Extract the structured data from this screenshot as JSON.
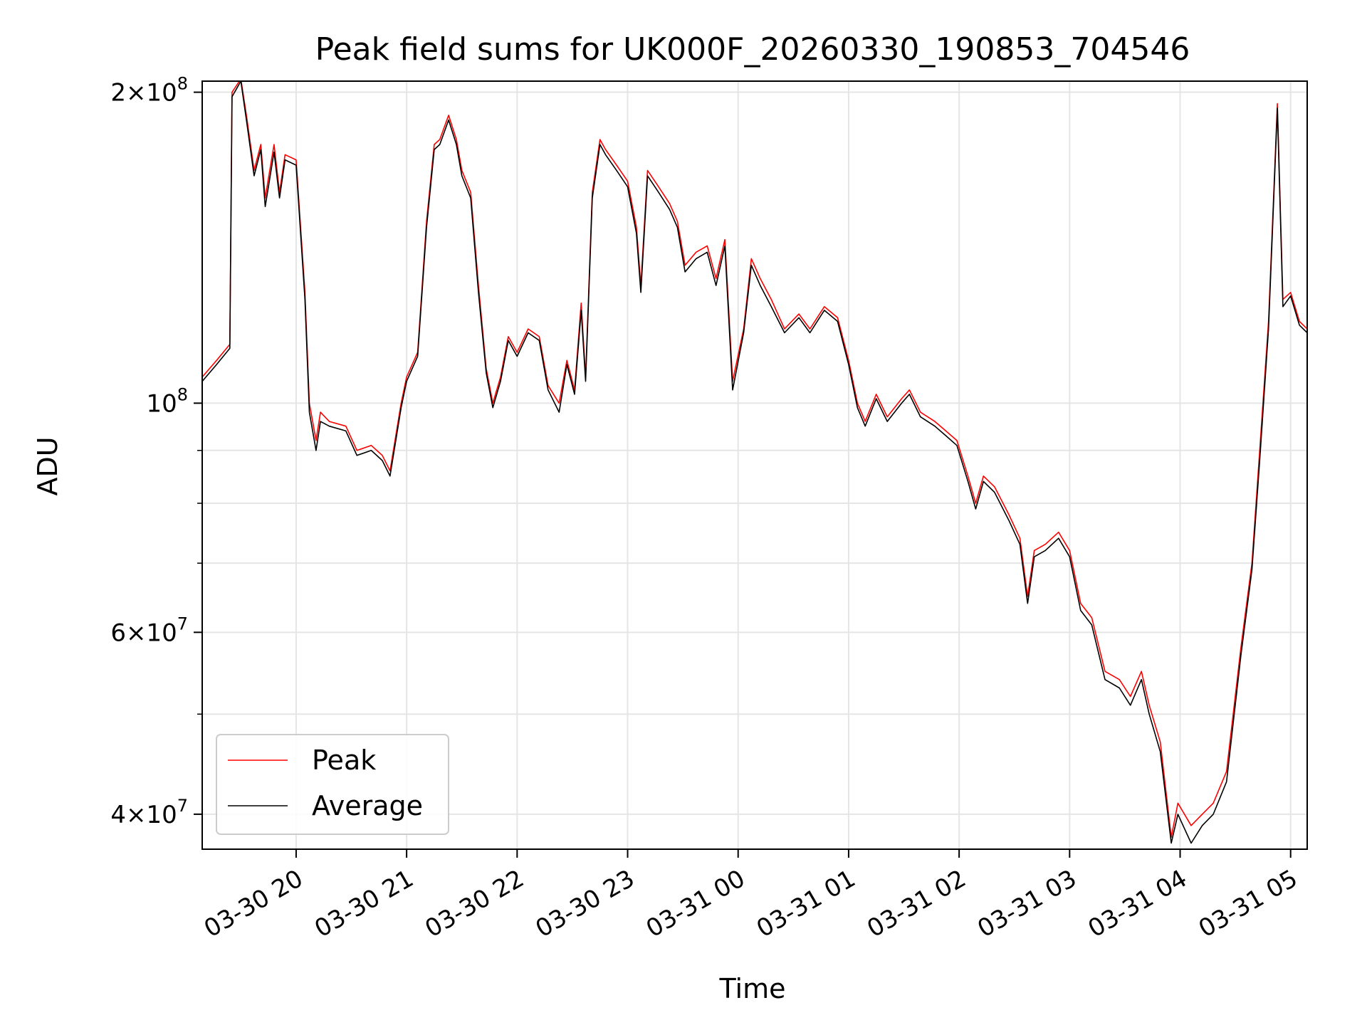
{
  "chart_data": {
    "type": "line",
    "title": "Peak field sums for UK000F_20260330_190853_704546",
    "xlabel": "Time",
    "ylabel": "ADU",
    "y_scale": "log",
    "ylim": [
      37000000,
      205000000
    ],
    "xlim_hours": [
      19.15,
      29.15
    ],
    "grid": true,
    "legend_position": "lower-left",
    "x_ticks": [
      {
        "hour": 20,
        "label": "03-30 20"
      },
      {
        "hour": 21,
        "label": "03-30 21"
      },
      {
        "hour": 22,
        "label": "03-30 22"
      },
      {
        "hour": 23,
        "label": "03-30 23"
      },
      {
        "hour": 24,
        "label": "03-31 00"
      },
      {
        "hour": 25,
        "label": "03-31 01"
      },
      {
        "hour": 26,
        "label": "03-31 02"
      },
      {
        "hour": 27,
        "label": "03-31 03"
      },
      {
        "hour": 28,
        "label": "03-31 04"
      },
      {
        "hour": 29,
        "label": "03-31 05"
      }
    ],
    "y_ticks": [
      {
        "value": 200000000,
        "mantissa": "2",
        "exp": "8"
      },
      {
        "value": 100000000,
        "mantissa": "",
        "exp": "8"
      },
      {
        "value": 60000000,
        "mantissa": "6",
        "exp": "7"
      },
      {
        "value": 40000000,
        "mantissa": "4",
        "exp": "7"
      }
    ],
    "y_minor_ticks": [
      50000000,
      70000000,
      80000000,
      90000000
    ],
    "series": [
      {
        "name": "Peak",
        "color": "#ff0000",
        "points": [
          [
            19.15,
            106000000
          ],
          [
            19.28,
            110000000
          ],
          [
            19.4,
            114000000
          ],
          [
            19.42,
            200000000
          ],
          [
            19.5,
            206000000
          ],
          [
            19.55,
            190000000
          ],
          [
            19.62,
            168000000
          ],
          [
            19.68,
            178000000
          ],
          [
            19.72,
            158000000
          ],
          [
            19.8,
            178000000
          ],
          [
            19.85,
            160000000
          ],
          [
            19.9,
            174000000
          ],
          [
            20.0,
            172000000
          ],
          [
            20.08,
            128000000
          ],
          [
            20.12,
            100000000
          ],
          [
            20.18,
            92000000
          ],
          [
            20.22,
            98000000
          ],
          [
            20.3,
            96000000
          ],
          [
            20.45,
            95000000
          ],
          [
            20.55,
            90000000
          ],
          [
            20.68,
            91000000
          ],
          [
            20.78,
            89000000
          ],
          [
            20.85,
            86000000
          ],
          [
            20.95,
            100000000
          ],
          [
            21.0,
            106000000
          ],
          [
            21.1,
            112000000
          ],
          [
            21.18,
            150000000
          ],
          [
            21.25,
            178000000
          ],
          [
            21.3,
            180000000
          ],
          [
            21.38,
            190000000
          ],
          [
            21.45,
            180000000
          ],
          [
            21.5,
            168000000
          ],
          [
            21.58,
            160000000
          ],
          [
            21.65,
            130000000
          ],
          [
            21.72,
            108000000
          ],
          [
            21.78,
            100000000
          ],
          [
            21.85,
            106000000
          ],
          [
            21.92,
            116000000
          ],
          [
            22.0,
            112000000
          ],
          [
            22.1,
            118000000
          ],
          [
            22.2,
            116000000
          ],
          [
            22.28,
            104000000
          ],
          [
            22.38,
            100000000
          ],
          [
            22.45,
            110000000
          ],
          [
            22.52,
            103000000
          ],
          [
            22.58,
            125000000
          ],
          [
            22.62,
            106000000
          ],
          [
            22.68,
            160000000
          ],
          [
            22.75,
            180000000
          ],
          [
            22.8,
            176000000
          ],
          [
            22.9,
            170000000
          ],
          [
            23.0,
            164000000
          ],
          [
            23.08,
            148000000
          ],
          [
            23.12,
            130000000
          ],
          [
            23.18,
            168000000
          ],
          [
            23.28,
            162000000
          ],
          [
            23.38,
            156000000
          ],
          [
            23.45,
            150000000
          ],
          [
            23.52,
            136000000
          ],
          [
            23.62,
            140000000
          ],
          [
            23.72,
            142000000
          ],
          [
            23.8,
            132000000
          ],
          [
            23.88,
            144000000
          ],
          [
            23.95,
            105000000
          ],
          [
            24.05,
            118000000
          ],
          [
            24.12,
            138000000
          ],
          [
            24.2,
            132000000
          ],
          [
            24.3,
            126000000
          ],
          [
            24.42,
            118000000
          ],
          [
            24.55,
            122000000
          ],
          [
            24.65,
            118000000
          ],
          [
            24.78,
            124000000
          ],
          [
            24.9,
            121000000
          ],
          [
            25.0,
            110000000
          ],
          [
            25.08,
            100000000
          ],
          [
            25.15,
            96000000
          ],
          [
            25.25,
            102000000
          ],
          [
            25.35,
            97000000
          ],
          [
            25.48,
            101000000
          ],
          [
            25.55,
            103000000
          ],
          [
            25.65,
            98000000
          ],
          [
            25.78,
            96000000
          ],
          [
            25.88,
            94000000
          ],
          [
            25.98,
            92000000
          ],
          [
            26.08,
            85000000
          ],
          [
            26.15,
            80000000
          ],
          [
            26.22,
            85000000
          ],
          [
            26.32,
            83000000
          ],
          [
            26.45,
            78000000
          ],
          [
            26.55,
            74000000
          ],
          [
            26.62,
            65000000
          ],
          [
            26.68,
            72000000
          ],
          [
            26.78,
            73000000
          ],
          [
            26.9,
            75000000
          ],
          [
            27.0,
            72000000
          ],
          [
            27.1,
            64000000
          ],
          [
            27.2,
            62000000
          ],
          [
            27.32,
            55000000
          ],
          [
            27.45,
            54000000
          ],
          [
            27.55,
            52000000
          ],
          [
            27.65,
            55000000
          ],
          [
            27.72,
            51000000
          ],
          [
            27.82,
            47000000
          ],
          [
            27.92,
            38000000
          ],
          [
            27.98,
            41000000
          ],
          [
            28.1,
            39000000
          ],
          [
            28.2,
            40000000
          ],
          [
            28.3,
            41000000
          ],
          [
            28.42,
            44000000
          ],
          [
            28.55,
            58000000
          ],
          [
            28.65,
            70000000
          ],
          [
            28.72,
            90000000
          ],
          [
            28.8,
            120000000
          ],
          [
            28.88,
            195000000
          ],
          [
            28.93,
            126000000
          ],
          [
            29.0,
            128000000
          ],
          [
            29.08,
            120000000
          ],
          [
            29.15,
            118000000
          ]
        ]
      },
      {
        "name": "Average",
        "color": "#000000",
        "points": [
          [
            19.15,
            105000000
          ],
          [
            19.28,
            109000000
          ],
          [
            19.4,
            113000000
          ],
          [
            19.42,
            198000000
          ],
          [
            19.5,
            205000000
          ],
          [
            19.55,
            188000000
          ],
          [
            19.62,
            166000000
          ],
          [
            19.68,
            176000000
          ],
          [
            19.72,
            155000000
          ],
          [
            19.8,
            175000000
          ],
          [
            19.85,
            158000000
          ],
          [
            19.9,
            172000000
          ],
          [
            20.0,
            170000000
          ],
          [
            20.08,
            126000000
          ],
          [
            20.12,
            98000000
          ],
          [
            20.18,
            90000000
          ],
          [
            20.22,
            96000000
          ],
          [
            20.3,
            95000000
          ],
          [
            20.45,
            94000000
          ],
          [
            20.55,
            89000000
          ],
          [
            20.68,
            90000000
          ],
          [
            20.78,
            88000000
          ],
          [
            20.85,
            85000000
          ],
          [
            20.95,
            99000000
          ],
          [
            21.0,
            105000000
          ],
          [
            21.1,
            111000000
          ],
          [
            21.18,
            148000000
          ],
          [
            21.25,
            176000000
          ],
          [
            21.3,
            178000000
          ],
          [
            21.38,
            188000000
          ],
          [
            21.45,
            178000000
          ],
          [
            21.5,
            166000000
          ],
          [
            21.58,
            158000000
          ],
          [
            21.65,
            128000000
          ],
          [
            21.72,
            107000000
          ],
          [
            21.78,
            99000000
          ],
          [
            21.85,
            105000000
          ],
          [
            21.92,
            115000000
          ],
          [
            22.0,
            111000000
          ],
          [
            22.1,
            117000000
          ],
          [
            22.2,
            115000000
          ],
          [
            22.28,
            103000000
          ],
          [
            22.38,
            98000000
          ],
          [
            22.45,
            109000000
          ],
          [
            22.52,
            102000000
          ],
          [
            22.58,
            123000000
          ],
          [
            22.62,
            105000000
          ],
          [
            22.68,
            158000000
          ],
          [
            22.75,
            178000000
          ],
          [
            22.8,
            174000000
          ],
          [
            22.9,
            168000000
          ],
          [
            23.0,
            162000000
          ],
          [
            23.08,
            146000000
          ],
          [
            23.12,
            128000000
          ],
          [
            23.18,
            166000000
          ],
          [
            23.28,
            160000000
          ],
          [
            23.38,
            154000000
          ],
          [
            23.45,
            148000000
          ],
          [
            23.52,
            134000000
          ],
          [
            23.62,
            138000000
          ],
          [
            23.72,
            140000000
          ],
          [
            23.8,
            130000000
          ],
          [
            23.88,
            142000000
          ],
          [
            23.95,
            103000000
          ],
          [
            24.05,
            117000000
          ],
          [
            24.12,
            136000000
          ],
          [
            24.2,
            130000000
          ],
          [
            24.3,
            124000000
          ],
          [
            24.42,
            117000000
          ],
          [
            24.55,
            121000000
          ],
          [
            24.65,
            117000000
          ],
          [
            24.78,
            123000000
          ],
          [
            24.9,
            120000000
          ],
          [
            25.0,
            109000000
          ],
          [
            25.08,
            99000000
          ],
          [
            25.15,
            95000000
          ],
          [
            25.25,
            101000000
          ],
          [
            25.35,
            96000000
          ],
          [
            25.48,
            100000000
          ],
          [
            25.55,
            102000000
          ],
          [
            25.65,
            97000000
          ],
          [
            25.78,
            95000000
          ],
          [
            25.88,
            93000000
          ],
          [
            25.98,
            91000000
          ],
          [
            26.08,
            84000000
          ],
          [
            26.15,
            79000000
          ],
          [
            26.22,
            84000000
          ],
          [
            26.32,
            82000000
          ],
          [
            26.45,
            77000000
          ],
          [
            26.55,
            73000000
          ],
          [
            26.62,
            64000000
          ],
          [
            26.68,
            71000000
          ],
          [
            26.78,
            72000000
          ],
          [
            26.9,
            74000000
          ],
          [
            27.0,
            71000000
          ],
          [
            27.1,
            63000000
          ],
          [
            27.2,
            61000000
          ],
          [
            27.32,
            54000000
          ],
          [
            27.45,
            53000000
          ],
          [
            27.55,
            51000000
          ],
          [
            27.65,
            54000000
          ],
          [
            27.72,
            50000000
          ],
          [
            27.82,
            46000000
          ],
          [
            27.92,
            37500000
          ],
          [
            27.98,
            40000000
          ],
          [
            28.1,
            37500000
          ],
          [
            28.2,
            39000000
          ],
          [
            28.3,
            40000000
          ],
          [
            28.42,
            43000000
          ],
          [
            28.55,
            57000000
          ],
          [
            28.65,
            69000000
          ],
          [
            28.72,
            88000000
          ],
          [
            28.8,
            118000000
          ],
          [
            28.88,
            193000000
          ],
          [
            28.93,
            124000000
          ],
          [
            29.0,
            127000000
          ],
          [
            29.08,
            119000000
          ],
          [
            29.15,
            117000000
          ]
        ]
      }
    ]
  }
}
